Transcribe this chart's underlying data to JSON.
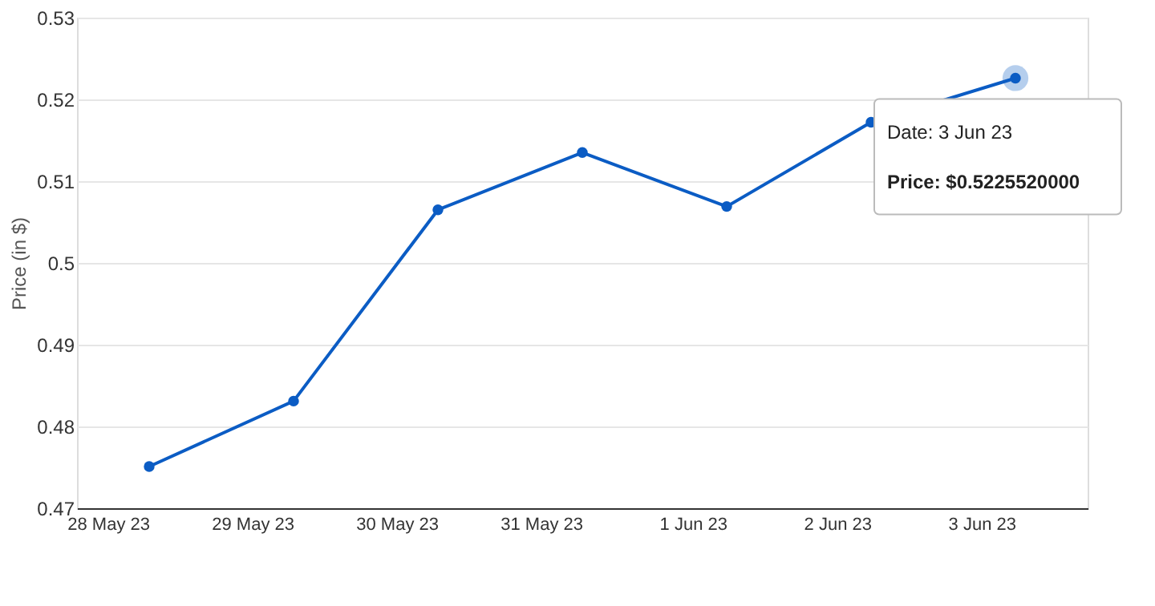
{
  "chart_data": {
    "type": "line",
    "ylabel": "Price (in $)",
    "categories": [
      "28 May 23",
      "29 May 23",
      "30 May 23",
      "31 May 23",
      "1 Jun 23",
      "2 Jun 23",
      "3 Jun 23"
    ],
    "series": [
      {
        "color": "#0b5cc4",
        "values": [
          0.4751,
          0.4831,
          0.5065,
          0.5135,
          0.5069,
          0.5172,
          0.5226
        ]
      }
    ],
    "ylim": [
      0.47,
      0.53
    ],
    "yticks": [
      0.47,
      0.48,
      0.49,
      {
        "value": 0.5,
        "label": "0.5"
      },
      0.51,
      0.52,
      0.53
    ],
    "grid": "y",
    "marker": "circle",
    "line_style": "solid",
    "annotations": [
      "Date: 3 Jun 23",
      "Price: $0.5225520000"
    ]
  }
}
